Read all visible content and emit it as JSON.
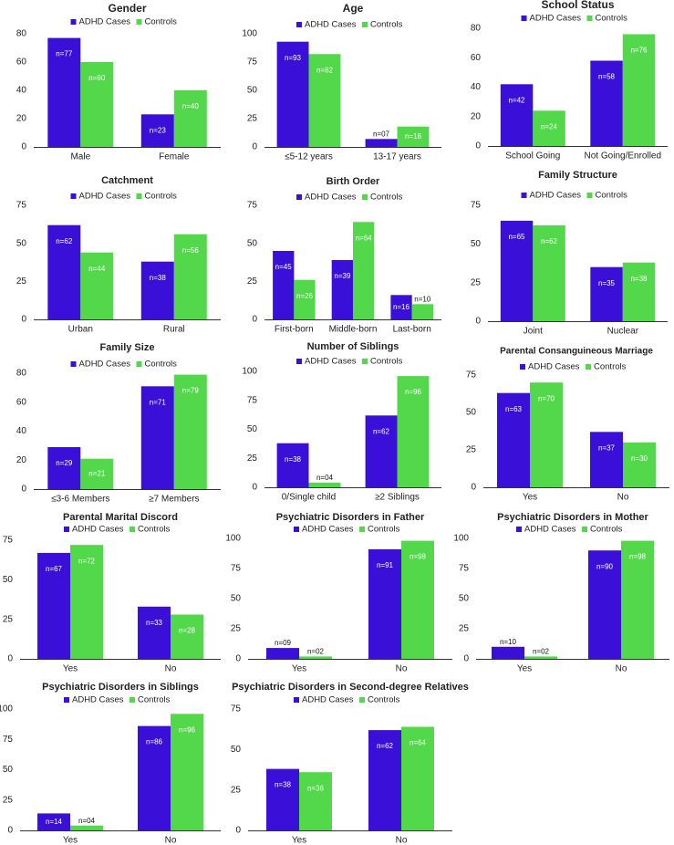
{
  "figure": {
    "colors": {
      "cases": "#3a10d8",
      "controls": "#52d84a"
    }
  },
  "chart_data": [
    {
      "type": "bar",
      "title": "Gender",
      "series_names": [
        "ADHD Cases",
        "Controls"
      ],
      "categories": [
        "Male",
        "Female"
      ],
      "cases": [
        77,
        23
      ],
      "controls": [
        60,
        40
      ],
      "cases_labels": [
        "n=77",
        "n=23"
      ],
      "controls_labels": [
        "n=60",
        "n=40"
      ],
      "yticks": [
        0,
        20,
        40,
        60,
        80
      ],
      "ylim": [
        0,
        80
      ]
    },
    {
      "type": "bar",
      "title": "Age",
      "series_names": [
        "ADHD Cases",
        "Controls"
      ],
      "categories": [
        "≤5-12 years",
        "13-17 years"
      ],
      "cases": [
        93,
        7
      ],
      "controls": [
        82,
        18
      ],
      "cases_labels": [
        "n=93",
        "n=07"
      ],
      "controls_labels": [
        "n=82",
        "n=18"
      ],
      "yticks": [
        0,
        25,
        50,
        75,
        100
      ],
      "ylim": [
        0,
        100
      ]
    },
    {
      "type": "bar",
      "title": "School Status",
      "series_names": [
        "ADHD Cases",
        "Controls"
      ],
      "categories": [
        "School Going",
        "Not Going/Enrolled"
      ],
      "cases": [
        42,
        58
      ],
      "controls": [
        24,
        76
      ],
      "cases_labels": [
        "n=42",
        "n=58"
      ],
      "controls_labels": [
        "n=24",
        "n=76"
      ],
      "yticks": [
        0,
        20,
        40,
        60,
        80
      ],
      "ylim": [
        0,
        80
      ]
    },
    {
      "type": "bar",
      "title": "Catchment",
      "series_names": [
        "ADHD Cases",
        "Controls"
      ],
      "categories": [
        "Urban",
        "Rural"
      ],
      "cases": [
        62,
        38
      ],
      "controls": [
        44,
        56
      ],
      "cases_labels": [
        "n=62",
        "n=38"
      ],
      "controls_labels": [
        "n=44",
        "n=56"
      ],
      "yticks": [
        0,
        25,
        50,
        75
      ],
      "ylim": [
        0,
        75
      ]
    },
    {
      "type": "bar",
      "title": "Birth Order",
      "series_names": [
        "ADHD Cases",
        "Controls"
      ],
      "categories": [
        "First-born",
        "Middle-born",
        "Last-born"
      ],
      "cases": [
        45,
        39,
        16
      ],
      "controls": [
        26,
        64,
        10
      ],
      "cases_labels": [
        "n=45",
        "n=39",
        "n=16"
      ],
      "controls_labels": [
        "n=26",
        "n=64",
        "n=10"
      ],
      "yticks": [
        0,
        25,
        50,
        75
      ],
      "ylim": [
        0,
        75
      ]
    },
    {
      "type": "bar",
      "title": "Family Structure",
      "series_names": [
        "ADHD Cases",
        "Controls"
      ],
      "categories": [
        "Joint",
        "Nuclear"
      ],
      "cases": [
        65,
        35
      ],
      "controls": [
        62,
        38
      ],
      "cases_labels": [
        "n=65",
        "n=35"
      ],
      "controls_labels": [
        "n=62",
        "n=38"
      ],
      "yticks": [
        0,
        25,
        50,
        75
      ],
      "ylim": [
        0,
        75
      ]
    },
    {
      "type": "bar",
      "title": "Family Size",
      "series_names": [
        "ADHD Cases",
        "Controls"
      ],
      "categories": [
        "≤3-6 Members",
        "≥7 Members"
      ],
      "cases": [
        29,
        71
      ],
      "controls": [
        21,
        79
      ],
      "cases_labels": [
        "n=29",
        "n=71"
      ],
      "controls_labels": [
        "n=21",
        "n=79"
      ],
      "yticks": [
        0,
        20,
        40,
        60,
        80
      ],
      "ylim": [
        0,
        80
      ]
    },
    {
      "type": "bar",
      "title": "Number of Siblings",
      "series_names": [
        "ADHD Cases",
        "Controls"
      ],
      "categories": [
        "0/Single child",
        "≥2 Siblings"
      ],
      "cases": [
        38,
        62
      ],
      "controls": [
        4,
        96
      ],
      "cases_labels": [
        "n=38",
        "n=62"
      ],
      "controls_labels": [
        "n=04",
        "n=96"
      ],
      "yticks": [
        0,
        25,
        50,
        75,
        100
      ],
      "ylim": [
        0,
        100
      ]
    },
    {
      "type": "bar",
      "title": "Parental Consanguineous Marriage",
      "series_names": [
        "ADHD Cases",
        "Controls"
      ],
      "categories": [
        "Yes",
        "No"
      ],
      "cases": [
        63,
        37
      ],
      "controls": [
        70,
        30
      ],
      "cases_labels": [
        "n=63",
        "n=37"
      ],
      "controls_labels": [
        "n=70",
        "n=30"
      ],
      "yticks": [
        0,
        25,
        50,
        75
      ],
      "ylim": [
        0,
        75
      ]
    },
    {
      "type": "bar",
      "title": "Parental Marital Discord",
      "series_names": [
        "ADHD Cases",
        "Controls"
      ],
      "categories": [
        "Yes",
        "No"
      ],
      "cases": [
        67,
        33
      ],
      "controls": [
        72,
        28
      ],
      "cases_labels": [
        "n=67",
        "n=33"
      ],
      "controls_labels": [
        "n=72",
        "n=28"
      ],
      "yticks": [
        0,
        25,
        50,
        75
      ],
      "ylim": [
        0,
        75
      ]
    },
    {
      "type": "bar",
      "title": "Psychiatric Disorders in Father",
      "series_names": [
        "ADHD Cases",
        "Controls"
      ],
      "categories": [
        "Yes",
        "No"
      ],
      "cases": [
        9,
        91
      ],
      "controls": [
        2,
        98
      ],
      "cases_labels": [
        "n=09",
        "n=91"
      ],
      "controls_labels": [
        "n=02",
        "n=98"
      ],
      "yticks": [
        0,
        25,
        50,
        75,
        100
      ],
      "ylim": [
        0,
        100
      ]
    },
    {
      "type": "bar",
      "title": "Psychiatric Disorders in Mother",
      "series_names": [
        "ADHD Cases",
        "Controls"
      ],
      "categories": [
        "Yes",
        "No"
      ],
      "cases": [
        10,
        90
      ],
      "controls": [
        2,
        98
      ],
      "cases_labels": [
        "n=10",
        "n=90"
      ],
      "controls_labels": [
        "n=02",
        "n=98"
      ],
      "yticks": [
        0,
        25,
        50,
        75,
        100
      ],
      "ylim": [
        0,
        100
      ]
    },
    {
      "type": "bar",
      "title": "Psychiatric Disorders in  Siblings",
      "series_names": [
        "ADHD Cases",
        "Controls"
      ],
      "categories": [
        "Yes",
        "No"
      ],
      "cases": [
        14,
        86
      ],
      "controls": [
        4,
        96
      ],
      "cases_labels": [
        "n=14",
        "n=86"
      ],
      "controls_labels": [
        "n=04",
        "n=96"
      ],
      "yticks": [
        0,
        25,
        50,
        75,
        100
      ],
      "ylim": [
        0,
        100
      ]
    },
    {
      "type": "bar",
      "title": "Psychiatric Disorders in  Second-degree Relatives",
      "series_names": [
        "ADHD Cases",
        "Controls"
      ],
      "categories": [
        "Yes",
        "No"
      ],
      "cases": [
        38,
        62
      ],
      "controls": [
        36,
        64
      ],
      "cases_labels": [
        "n=38",
        "n=62"
      ],
      "controls_labels": [
        "n=36",
        "n=64"
      ],
      "yticks": [
        0,
        25,
        50,
        75
      ],
      "ylim": [
        0,
        75
      ]
    }
  ]
}
